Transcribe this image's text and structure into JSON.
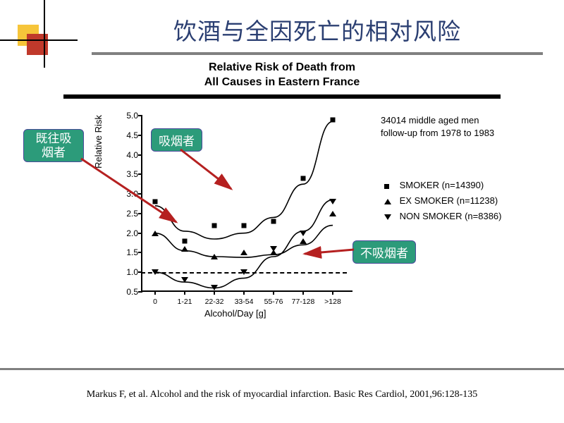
{
  "title": "饮酒与全因死亡的相对风险",
  "subtitle_line1": "Relative Risk of Death from",
  "subtitle_line2": "All Causes in Eastern France",
  "meta_line1": "34014 middle aged men",
  "meta_line2": "follow-up from 1978 to 1983",
  "y_axis_label": "Relative Risk",
  "x_axis_label": "Alcohol/Day [g]",
  "axes": {
    "y_min": 0.5,
    "y_max": 5.0,
    "y_ticks": [
      0.5,
      1.0,
      1.5,
      2.0,
      2.5,
      3.0,
      3.5,
      4.0,
      4.5,
      5.0
    ],
    "x_categories": [
      "0",
      "1-21",
      "22-32",
      "33-54",
      "55-76",
      "77-128",
      ">128"
    ]
  },
  "dashed_ref": 1.0,
  "series": {
    "smoker": {
      "label": "SMOKER (n=14390)",
      "marker": "square",
      "y": [
        2.8,
        1.8,
        2.2,
        2.2,
        2.3,
        3.4,
        4.9
      ]
    },
    "ex_smoker": {
      "label": "EX SMOKER (n=11238)",
      "marker": "triangle-up",
      "y": [
        2.0,
        1.6,
        1.4,
        1.5,
        1.5,
        1.8,
        2.5
      ]
    },
    "non_smoker": {
      "label": "NON SMOKER (n=8386)",
      "marker": "triangle-down",
      "y": [
        1.0,
        0.8,
        0.6,
        1.0,
        1.6,
        2.0,
        2.8
      ]
    }
  },
  "fit_curves": {
    "smoker": [
      [
        0,
        2.7
      ],
      [
        1,
        2.05
      ],
      [
        2,
        1.85
      ],
      [
        3,
        2.0
      ],
      [
        4,
        2.4
      ],
      [
        5,
        3.25
      ],
      [
        6,
        4.85
      ]
    ],
    "ex_smoker": [
      [
        0,
        2.0
      ],
      [
        1,
        1.55
      ],
      [
        2,
        1.4
      ],
      [
        3,
        1.38
      ],
      [
        4,
        1.45
      ],
      [
        5,
        1.7
      ],
      [
        6,
        2.2
      ]
    ],
    "non_smoker": [
      [
        0,
        1.0
      ],
      [
        1,
        0.75
      ],
      [
        2,
        0.6
      ],
      [
        3,
        0.85
      ],
      [
        4,
        1.4
      ],
      [
        5,
        2.05
      ],
      [
        6,
        2.85
      ]
    ]
  },
  "callouts": {
    "ex_smoker": "既往吸\n烟者",
    "smoker": "吸烟者",
    "non_smoker": "不吸烟者"
  },
  "pointer_color": "#b52020",
  "citation": "Markus F, et al. Alcohol and the risk of myocardial infarction. Basic Res Cardiol, 2001,96:128-135"
}
